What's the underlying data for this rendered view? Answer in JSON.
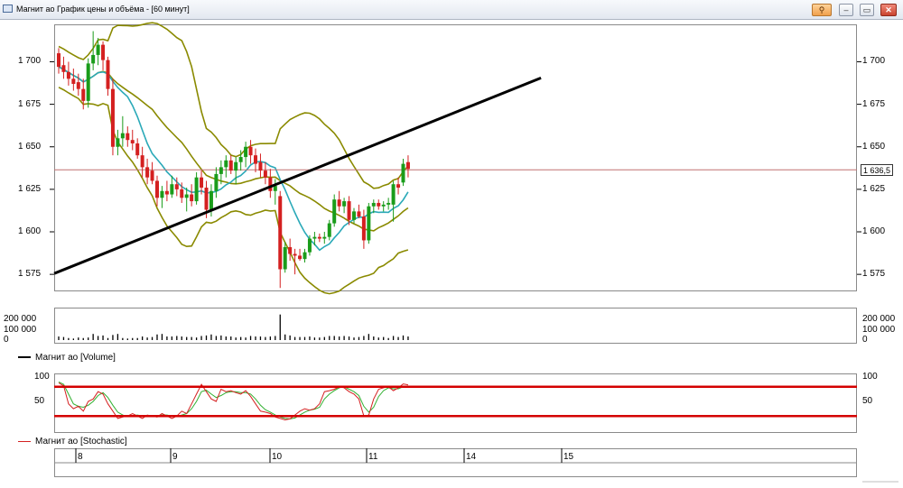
{
  "window": {
    "title": "Магнит ао График цены и объёма - [60 минут]",
    "buttons": [
      "pin",
      "minimize",
      "maximize",
      "close"
    ]
  },
  "price_panel": {
    "y_ticks": [
      "1 700",
      "1 675",
      "1 650",
      "1 625",
      "1 600",
      "1 575"
    ],
    "last_price": "1 636,5",
    "colors": {
      "up": "#1a9c1a",
      "down": "#d42020",
      "bollinger": "#8a8a00",
      "ma": "#2aa9b8",
      "trendline": "#000000",
      "price_line": "#c07070"
    }
  },
  "volume_panel": {
    "y_ticks": [
      "200 000",
      "100 000",
      "0"
    ],
    "legend_label": "Магнит ао [Volume]"
  },
  "stochastic_panel": {
    "y_ticks": [
      "100",
      "50"
    ],
    "legend_label": "Магнит ао [Stochastic]",
    "levels": [
      80,
      20
    ],
    "colors": {
      "k": "#d42020",
      "d": "#30b030",
      "levels": "#d40000"
    }
  },
  "date_axis": {
    "labels": [
      "8",
      "9",
      "10",
      "11",
      "14",
      "15"
    ]
  },
  "chart_data": {
    "type": "candlestick",
    "ylim": [
      1565,
      1722
    ],
    "candles": [
      {
        "o": 1705,
        "h": 1708,
        "l": 1693,
        "c": 1697
      },
      {
        "o": 1698,
        "h": 1703,
        "l": 1690,
        "c": 1694
      },
      {
        "o": 1694,
        "h": 1700,
        "l": 1686,
        "c": 1690
      },
      {
        "o": 1690,
        "h": 1696,
        "l": 1683,
        "c": 1687
      },
      {
        "o": 1688,
        "h": 1693,
        "l": 1680,
        "c": 1684
      },
      {
        "o": 1684,
        "h": 1690,
        "l": 1672,
        "c": 1677
      },
      {
        "o": 1677,
        "h": 1702,
        "l": 1673,
        "c": 1699
      },
      {
        "o": 1699,
        "h": 1718,
        "l": 1695,
        "c": 1704
      },
      {
        "o": 1704,
        "h": 1714,
        "l": 1698,
        "c": 1710
      },
      {
        "o": 1710,
        "h": 1712,
        "l": 1695,
        "c": 1701
      },
      {
        "o": 1701,
        "h": 1703,
        "l": 1680,
        "c": 1684
      },
      {
        "o": 1684,
        "h": 1690,
        "l": 1645,
        "c": 1650
      },
      {
        "o": 1650,
        "h": 1660,
        "l": 1645,
        "c": 1655
      },
      {
        "o": 1655,
        "h": 1668,
        "l": 1650,
        "c": 1658
      },
      {
        "o": 1658,
        "h": 1662,
        "l": 1650,
        "c": 1654
      },
      {
        "o": 1654,
        "h": 1660,
        "l": 1648,
        "c": 1652
      },
      {
        "o": 1652,
        "h": 1655,
        "l": 1643,
        "c": 1645
      },
      {
        "o": 1645,
        "h": 1650,
        "l": 1632,
        "c": 1638
      },
      {
        "o": 1638,
        "h": 1643,
        "l": 1628,
        "c": 1632
      },
      {
        "o": 1636,
        "h": 1641,
        "l": 1628,
        "c": 1630
      },
      {
        "o": 1630,
        "h": 1633,
        "l": 1615,
        "c": 1620
      },
      {
        "o": 1620,
        "h": 1627,
        "l": 1614,
        "c": 1624
      },
      {
        "o": 1624,
        "h": 1630,
        "l": 1618,
        "c": 1622
      },
      {
        "o": 1622,
        "h": 1633,
        "l": 1620,
        "c": 1628
      },
      {
        "o": 1628,
        "h": 1632,
        "l": 1621,
        "c": 1625
      },
      {
        "o": 1625,
        "h": 1629,
        "l": 1617,
        "c": 1620
      },
      {
        "o": 1620,
        "h": 1626,
        "l": 1612,
        "c": 1622
      },
      {
        "o": 1622,
        "h": 1628,
        "l": 1615,
        "c": 1618
      },
      {
        "o": 1618,
        "h": 1635,
        "l": 1616,
        "c": 1632
      },
      {
        "o": 1632,
        "h": 1636,
        "l": 1622,
        "c": 1626
      },
      {
        "o": 1626,
        "h": 1630,
        "l": 1608,
        "c": 1613
      },
      {
        "o": 1613,
        "h": 1628,
        "l": 1609,
        "c": 1624
      },
      {
        "o": 1624,
        "h": 1638,
        "l": 1620,
        "c": 1634
      },
      {
        "o": 1634,
        "h": 1642,
        "l": 1628,
        "c": 1638
      },
      {
        "o": 1638,
        "h": 1645,
        "l": 1632,
        "c": 1642
      },
      {
        "o": 1642,
        "h": 1645,
        "l": 1634,
        "c": 1636
      },
      {
        "o": 1636,
        "h": 1644,
        "l": 1628,
        "c": 1641
      },
      {
        "o": 1641,
        "h": 1648,
        "l": 1636,
        "c": 1644
      },
      {
        "o": 1644,
        "h": 1653,
        "l": 1638,
        "c": 1650
      },
      {
        "o": 1650,
        "h": 1654,
        "l": 1640,
        "c": 1645
      },
      {
        "o": 1645,
        "h": 1649,
        "l": 1635,
        "c": 1640
      },
      {
        "o": 1641,
        "h": 1646,
        "l": 1632,
        "c": 1636
      },
      {
        "o": 1636,
        "h": 1641,
        "l": 1628,
        "c": 1632
      },
      {
        "o": 1632,
        "h": 1637,
        "l": 1620,
        "c": 1624
      },
      {
        "o": 1624,
        "h": 1631,
        "l": 1616,
        "c": 1627
      },
      {
        "o": 1621,
        "h": 1624,
        "l": 1567,
        "c": 1578
      },
      {
        "o": 1578,
        "h": 1594,
        "l": 1576,
        "c": 1591
      },
      {
        "o": 1591,
        "h": 1596,
        "l": 1583,
        "c": 1587
      },
      {
        "o": 1587,
        "h": 1590,
        "l": 1575,
        "c": 1586
      },
      {
        "o": 1586,
        "h": 1590,
        "l": 1583,
        "c": 1584
      },
      {
        "o": 1584,
        "h": 1590,
        "l": 1582,
        "c": 1588
      },
      {
        "o": 1588,
        "h": 1598,
        "l": 1586,
        "c": 1596
      },
      {
        "o": 1596,
        "h": 1600,
        "l": 1592,
        "c": 1597
      },
      {
        "o": 1597,
        "h": 1599,
        "l": 1594,
        "c": 1596
      },
      {
        "o": 1596,
        "h": 1600,
        "l": 1593,
        "c": 1597
      },
      {
        "o": 1597,
        "h": 1607,
        "l": 1595,
        "c": 1605
      },
      {
        "o": 1605,
        "h": 1622,
        "l": 1603,
        "c": 1619
      },
      {
        "o": 1619,
        "h": 1624,
        "l": 1612,
        "c": 1615
      },
      {
        "o": 1615,
        "h": 1620,
        "l": 1611,
        "c": 1618
      },
      {
        "o": 1618,
        "h": 1621,
        "l": 1604,
        "c": 1607
      },
      {
        "o": 1607,
        "h": 1614,
        "l": 1605,
        "c": 1612
      },
      {
        "o": 1612,
        "h": 1616,
        "l": 1608,
        "c": 1609
      },
      {
        "o": 1609,
        "h": 1613,
        "l": 1590,
        "c": 1595
      },
      {
        "o": 1595,
        "h": 1617,
        "l": 1593,
        "c": 1615
      },
      {
        "o": 1615,
        "h": 1619,
        "l": 1611,
        "c": 1617
      },
      {
        "o": 1617,
        "h": 1619,
        "l": 1613,
        "c": 1615
      },
      {
        "o": 1615,
        "h": 1618,
        "l": 1612,
        "c": 1616
      },
      {
        "o": 1616,
        "h": 1620,
        "l": 1613,
        "c": 1617
      },
      {
        "o": 1616,
        "h": 1630,
        "l": 1606,
        "c": 1628
      },
      {
        "o": 1628,
        "h": 1632,
        "l": 1622,
        "c": 1626
      },
      {
        "o": 1629,
        "h": 1643,
        "l": 1627,
        "c": 1640
      },
      {
        "o": 1641,
        "h": 1645,
        "l": 1632,
        "c": 1637
      }
    ],
    "volume_max": 300000,
    "volumes": [
      35000,
      30000,
      20000,
      15000,
      25000,
      20000,
      25000,
      60000,
      40000,
      45000,
      20000,
      50000,
      60000,
      20000,
      15000,
      20000,
      20000,
      35000,
      25000,
      30000,
      55000,
      60000,
      35000,
      35000,
      40000,
      35000,
      30000,
      30000,
      25000,
      40000,
      45000,
      55000,
      40000,
      45000,
      35000,
      35000,
      25000,
      30000,
      25000,
      40000,
      35000,
      35000,
      30000,
      35000,
      40000,
      250000,
      55000,
      45000,
      30000,
      30000,
      30000,
      35000,
      25000,
      25000,
      30000,
      40000,
      40000,
      35000,
      40000,
      35000,
      25000,
      30000,
      40000,
      60000,
      35000,
      25000,
      30000,
      20000,
      40000,
      30000,
      45000,
      35000
    ],
    "stoch_k": [
      88,
      82,
      45,
      35,
      40,
      30,
      50,
      55,
      70,
      65,
      45,
      30,
      15,
      18,
      20,
      25,
      20,
      15,
      22,
      20,
      18,
      25,
      20,
      15,
      20,
      30,
      25,
      45,
      65,
      85,
      70,
      55,
      50,
      75,
      70,
      72,
      68,
      65,
      72,
      60,
      45,
      30,
      28,
      25,
      18,
      15,
      12,
      14,
      22,
      30,
      35,
      32,
      35,
      45,
      70,
      72,
      75,
      80,
      78,
      70,
      65,
      55,
      20,
      22,
      55,
      75,
      78,
      80,
      72,
      78,
      86,
      84
    ],
    "stoch_d": [
      90,
      85,
      65,
      45,
      40,
      38,
      42,
      50,
      62,
      68,
      58,
      42,
      28,
      22,
      19,
      21,
      22,
      20,
      20,
      20,
      21,
      22,
      22,
      20,
      19,
      22,
      25,
      35,
      50,
      70,
      73,
      65,
      58,
      62,
      68,
      70,
      70,
      68,
      68,
      65,
      55,
      42,
      33,
      28,
      22,
      18,
      15,
      14,
      16,
      22,
      28,
      32,
      34,
      38,
      55,
      65,
      72,
      78,
      80,
      75,
      70,
      62,
      40,
      28,
      38,
      60,
      72,
      78,
      76,
      76,
      80,
      82
    ],
    "trendline": {
      "x_start_index": 0,
      "y_start": 1575.5,
      "x_end_index": 98,
      "y_end": 1690.5
    }
  }
}
